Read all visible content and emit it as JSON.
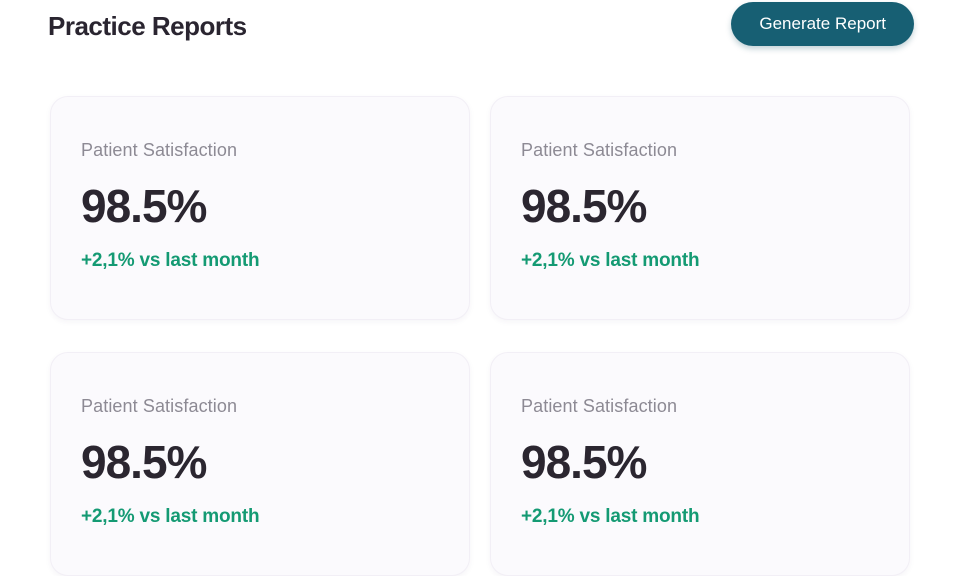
{
  "page": {
    "title": "Practice Reports"
  },
  "header": {
    "generate_report_button": "Generate Report"
  },
  "colors": {
    "accent_teal": "#175f73",
    "positive_green": "#149a73",
    "card_background": "#fbfafd",
    "title_text": "#2a2530",
    "muted_label": "#8d8a94"
  },
  "cards": [
    {
      "label": "Patient Satisfaction",
      "value": "98.5%",
      "delta": "+2,1% vs last month"
    },
    {
      "label": "Patient Satisfaction",
      "value": "98.5%",
      "delta": "+2,1% vs last month"
    },
    {
      "label": "Patient Satisfaction",
      "value": "98.5%",
      "delta": "+2,1% vs last month"
    },
    {
      "label": "Patient Satisfaction",
      "value": "98.5%",
      "delta": "+2,1% vs last month"
    }
  ]
}
